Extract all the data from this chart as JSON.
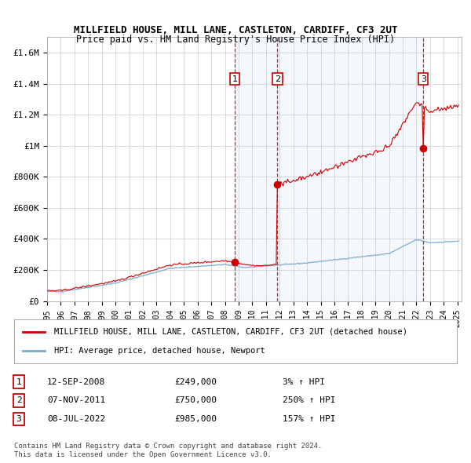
{
  "title1": "MILLFIELD HOUSE, MILL LANE, CASTLETON, CARDIFF, CF3 2UT",
  "title2": "Price paid vs. HM Land Registry's House Price Index (HPI)",
  "legend_red": "MILLFIELD HOUSE, MILL LANE, CASTLETON, CARDIFF, CF3 2UT (detached house)",
  "legend_blue": "HPI: Average price, detached house, Newport",
  "sale1_label": "12-SEP-2008",
  "sale1_price_str": "£249,000",
  "sale1_pct": "3% ↑ HPI",
  "sale2_label": "07-NOV-2011",
  "sale2_price_str": "£750,000",
  "sale2_pct": "250% ↑ HPI",
  "sale3_label": "08-JUL-2022",
  "sale3_price_str": "£985,000",
  "sale3_pct": "157% ↑ HPI",
  "footer1": "Contains HM Land Registry data © Crown copyright and database right 2024.",
  "footer2": "This data is licensed under the Open Government Licence v3.0.",
  "ylim_max": 1700000,
  "background_color": "#ffffff",
  "grid_color": "#cccccc",
  "red_color": "#cc0000",
  "blue_color": "#7aabcc",
  "shade_color": "#ddeeff",
  "sale1_x": 2008.708,
  "sale2_x": 2011.833,
  "sale3_x": 2022.5,
  "sale1_price": 249000,
  "sale2_price": 750000,
  "sale3_price": 985000
}
